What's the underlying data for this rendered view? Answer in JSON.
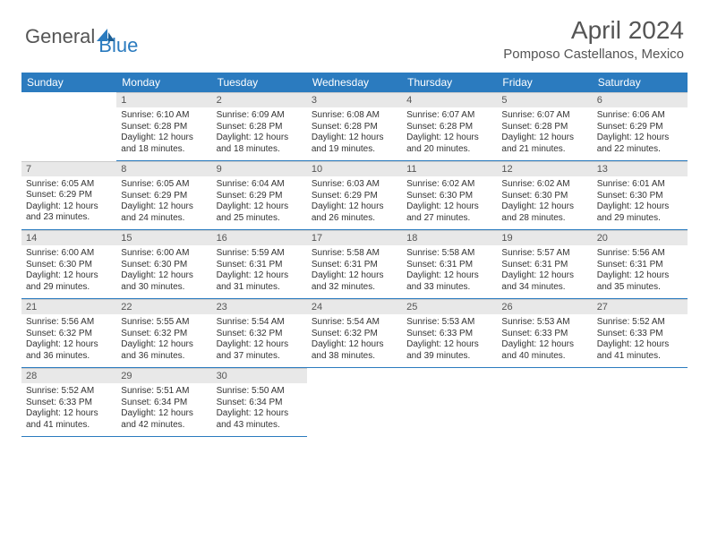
{
  "logo": {
    "text1": "General",
    "text2": "Blue"
  },
  "title": "April 2024",
  "location": "Pomposo Castellanos, Mexico",
  "colors": {
    "header_bg": "#2b7bbf",
    "header_fg": "#ffffff",
    "daynum_bg": "#e8e8e8",
    "text": "#333333",
    "title": "#555555"
  },
  "weekdays": [
    "Sunday",
    "Monday",
    "Tuesday",
    "Wednesday",
    "Thursday",
    "Friday",
    "Saturday"
  ],
  "weeks": [
    [
      null,
      {
        "n": "1",
        "sr": "6:10 AM",
        "ss": "6:28 PM",
        "dl": "12 hours and 18 minutes."
      },
      {
        "n": "2",
        "sr": "6:09 AM",
        "ss": "6:28 PM",
        "dl": "12 hours and 18 minutes."
      },
      {
        "n": "3",
        "sr": "6:08 AM",
        "ss": "6:28 PM",
        "dl": "12 hours and 19 minutes."
      },
      {
        "n": "4",
        "sr": "6:07 AM",
        "ss": "6:28 PM",
        "dl": "12 hours and 20 minutes."
      },
      {
        "n": "5",
        "sr": "6:07 AM",
        "ss": "6:28 PM",
        "dl": "12 hours and 21 minutes."
      },
      {
        "n": "6",
        "sr": "6:06 AM",
        "ss": "6:29 PM",
        "dl": "12 hours and 22 minutes."
      }
    ],
    [
      {
        "n": "7",
        "sr": "6:05 AM",
        "ss": "6:29 PM",
        "dl": "12 hours and 23 minutes."
      },
      {
        "n": "8",
        "sr": "6:05 AM",
        "ss": "6:29 PM",
        "dl": "12 hours and 24 minutes."
      },
      {
        "n": "9",
        "sr": "6:04 AM",
        "ss": "6:29 PM",
        "dl": "12 hours and 25 minutes."
      },
      {
        "n": "10",
        "sr": "6:03 AM",
        "ss": "6:29 PM",
        "dl": "12 hours and 26 minutes."
      },
      {
        "n": "11",
        "sr": "6:02 AM",
        "ss": "6:30 PM",
        "dl": "12 hours and 27 minutes."
      },
      {
        "n": "12",
        "sr": "6:02 AM",
        "ss": "6:30 PM",
        "dl": "12 hours and 28 minutes."
      },
      {
        "n": "13",
        "sr": "6:01 AM",
        "ss": "6:30 PM",
        "dl": "12 hours and 29 minutes."
      }
    ],
    [
      {
        "n": "14",
        "sr": "6:00 AM",
        "ss": "6:30 PM",
        "dl": "12 hours and 29 minutes."
      },
      {
        "n": "15",
        "sr": "6:00 AM",
        "ss": "6:30 PM",
        "dl": "12 hours and 30 minutes."
      },
      {
        "n": "16",
        "sr": "5:59 AM",
        "ss": "6:31 PM",
        "dl": "12 hours and 31 minutes."
      },
      {
        "n": "17",
        "sr": "5:58 AM",
        "ss": "6:31 PM",
        "dl": "12 hours and 32 minutes."
      },
      {
        "n": "18",
        "sr": "5:58 AM",
        "ss": "6:31 PM",
        "dl": "12 hours and 33 minutes."
      },
      {
        "n": "19",
        "sr": "5:57 AM",
        "ss": "6:31 PM",
        "dl": "12 hours and 34 minutes."
      },
      {
        "n": "20",
        "sr": "5:56 AM",
        "ss": "6:31 PM",
        "dl": "12 hours and 35 minutes."
      }
    ],
    [
      {
        "n": "21",
        "sr": "5:56 AM",
        "ss": "6:32 PM",
        "dl": "12 hours and 36 minutes."
      },
      {
        "n": "22",
        "sr": "5:55 AM",
        "ss": "6:32 PM",
        "dl": "12 hours and 36 minutes."
      },
      {
        "n": "23",
        "sr": "5:54 AM",
        "ss": "6:32 PM",
        "dl": "12 hours and 37 minutes."
      },
      {
        "n": "24",
        "sr": "5:54 AM",
        "ss": "6:32 PM",
        "dl": "12 hours and 38 minutes."
      },
      {
        "n": "25",
        "sr": "5:53 AM",
        "ss": "6:33 PM",
        "dl": "12 hours and 39 minutes."
      },
      {
        "n": "26",
        "sr": "5:53 AM",
        "ss": "6:33 PM",
        "dl": "12 hours and 40 minutes."
      },
      {
        "n": "27",
        "sr": "5:52 AM",
        "ss": "6:33 PM",
        "dl": "12 hours and 41 minutes."
      }
    ],
    [
      {
        "n": "28",
        "sr": "5:52 AM",
        "ss": "6:33 PM",
        "dl": "12 hours and 41 minutes."
      },
      {
        "n": "29",
        "sr": "5:51 AM",
        "ss": "6:34 PM",
        "dl": "12 hours and 42 minutes."
      },
      {
        "n": "30",
        "sr": "5:50 AM",
        "ss": "6:34 PM",
        "dl": "12 hours and 43 minutes."
      },
      null,
      null,
      null,
      null
    ]
  ]
}
